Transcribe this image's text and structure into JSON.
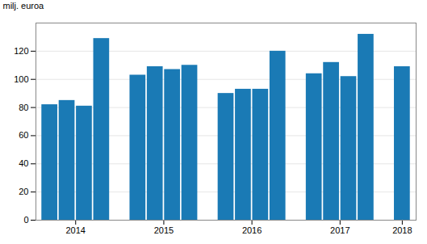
{
  "chart_data": {
    "type": "bar",
    "categories": [
      "2014",
      "2014",
      "2014",
      "2014",
      "2015",
      "2015",
      "2015",
      "2015",
      "2016",
      "2016",
      "2016",
      "2016",
      "2017",
      "2017",
      "2017",
      "2017",
      "2018"
    ],
    "values": [
      82,
      85,
      81,
      129,
      103,
      109,
      107,
      110,
      90,
      93,
      93,
      120,
      104,
      112,
      102,
      132,
      109
    ],
    "color": "#1a7ab5",
    "ylabel": "milj. euroa",
    "ylim": [
      0,
      140
    ],
    "yticks": [
      0,
      20,
      40,
      60,
      80,
      100,
      120
    ],
    "grid": true
  }
}
